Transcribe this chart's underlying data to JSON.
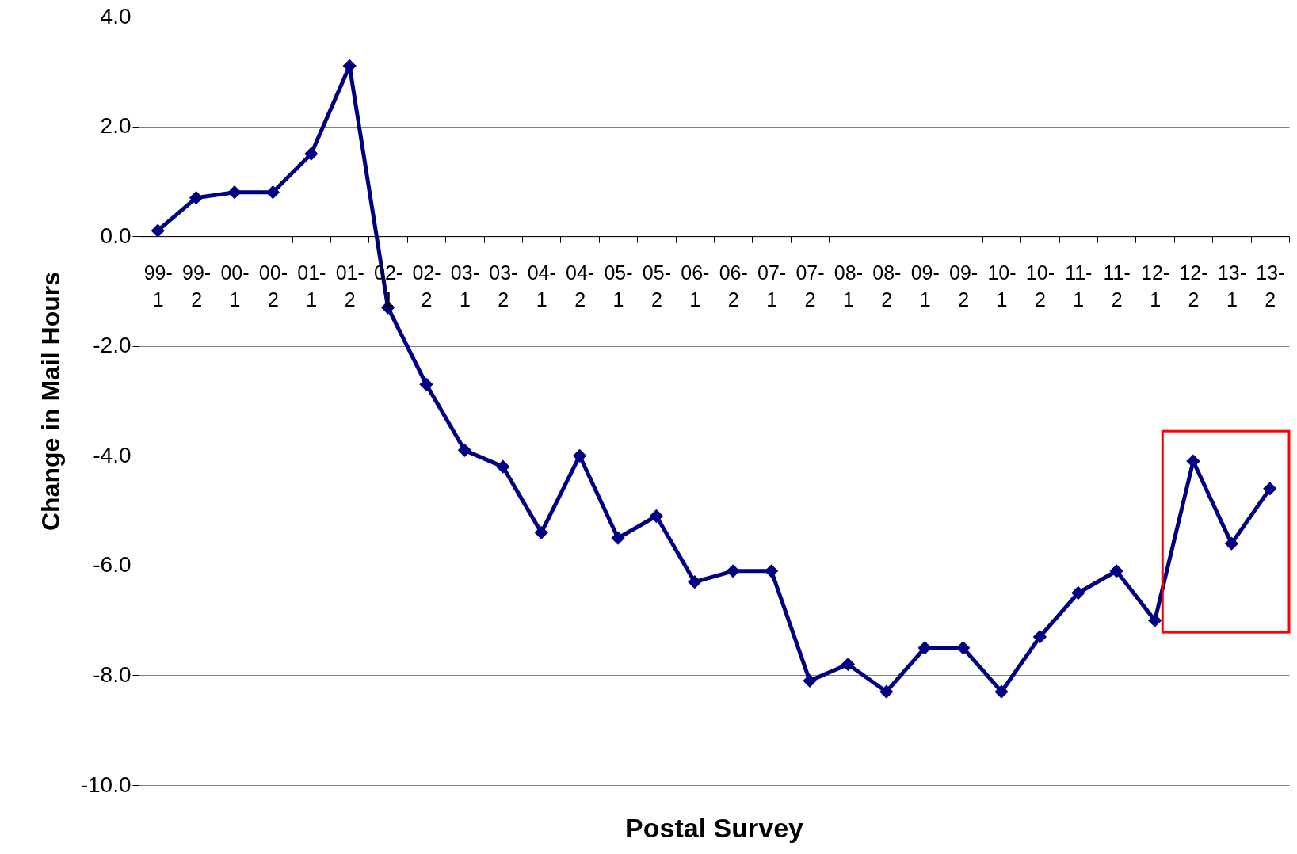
{
  "chart_data": {
    "type": "line",
    "xlabel": "Postal Survey",
    "ylabel": "Change in Mail Hours",
    "categories": [
      "99-1",
      "99-2",
      "00-1",
      "00-2",
      "01-1",
      "01-2",
      "02-1",
      "02-2",
      "03-1",
      "03-2",
      "04-1",
      "04-2",
      "05-1",
      "05-2",
      "06-1",
      "06-2",
      "07-1",
      "07-2",
      "08-1",
      "08-2",
      "09-1",
      "09-2",
      "10-1",
      "10-2",
      "11-1",
      "11-2",
      "12-1",
      "12-2",
      "13-1",
      "13-2"
    ],
    "series": [
      {
        "color": "#000080",
        "values": [
          0.1,
          0.7,
          0.8,
          0.8,
          1.5,
          3.1,
          -1.3,
          -2.7,
          -3.9,
          -4.2,
          -5.4,
          -4.0,
          -5.5,
          -5.1,
          -6.3,
          -6.1,
          -6.1,
          -8.1,
          -7.8,
          -8.3,
          -7.5,
          -7.5,
          -8.3,
          -7.3,
          -6.5,
          -6.1,
          -7.0,
          -4.1,
          -5.6,
          -4.6
        ]
      }
    ],
    "ylim": [
      -10,
      4
    ],
    "yticks": [
      {
        "value": -10,
        "label": "-10.0"
      },
      {
        "value": -8,
        "label": "-8.0"
      },
      {
        "value": -6,
        "label": "-6.0"
      },
      {
        "value": -4,
        "label": "-4.0"
      },
      {
        "value": -2,
        "label": "-2.0"
      },
      {
        "value": 0,
        "label": "0.0"
      },
      {
        "value": 2,
        "label": "2.0"
      },
      {
        "value": 4,
        "label": "4.0"
      }
    ],
    "grid": "y",
    "marker": "diamond",
    "line_style": "solid"
  }
}
